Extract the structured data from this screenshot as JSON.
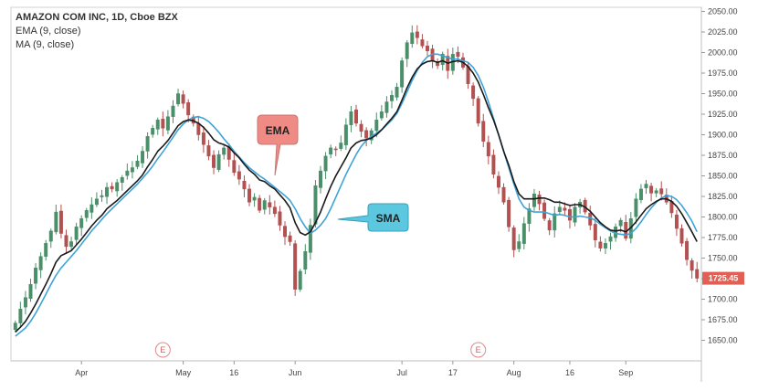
{
  "legend": {
    "symbol_line": "AMAZON COM INC, 1D, Cboe BZX",
    "ema_line": "EMA (9, close)",
    "ma_line": "MA (9, close)"
  },
  "callouts": {
    "ema_label": "EMA",
    "sma_label": "SMA",
    "ema_color": "#f08a84",
    "sma_color": "#5bc8e0"
  },
  "last_price_label": "1725.45",
  "earnings_marker": "E",
  "colors": {
    "up": "#4a8f6a",
    "down": "#b35050",
    "ema": "#1a1a1a",
    "ma": "#3ea3d8",
    "price_tag": "#e06055"
  },
  "chart_data": {
    "type": "candlestick",
    "title": "AMAZON COM INC, 1D, Cboe BZX",
    "xlabel": "",
    "ylabel": "",
    "ylim": [
      1625,
      2055
    ],
    "y_ticks": [
      1650,
      1675,
      1700,
      1725,
      1750,
      1775,
      1800,
      1825,
      1850,
      1875,
      1900,
      1925,
      1950,
      1975,
      2000,
      2025,
      2050
    ],
    "x_tick_labels": [
      {
        "label": "Apr",
        "bar": 13
      },
      {
        "label": "May",
        "bar": 33
      },
      {
        "label": "16",
        "bar": 43
      },
      {
        "label": "Jun",
        "bar": 55
      },
      {
        "label": "Jul",
        "bar": 76
      },
      {
        "label": "17",
        "bar": 86
      },
      {
        "label": "Aug",
        "bar": 98
      },
      {
        "label": "16",
        "bar": 109
      },
      {
        "label": "Sep",
        "bar": 120
      }
    ],
    "earnings_bars": [
      29,
      91
    ],
    "closes": [
      1671,
      1688,
      1702,
      1718,
      1738,
      1752,
      1768,
      1783,
      1806,
      1780,
      1764,
      1770,
      1788,
      1798,
      1808,
      1815,
      1822,
      1826,
      1836,
      1834,
      1842,
      1848,
      1856,
      1860,
      1868,
      1880,
      1898,
      1908,
      1918,
      1908,
      1922,
      1935,
      1950,
      1938,
      1924,
      1914,
      1900,
      1888,
      1874,
      1860,
      1876,
      1884,
      1870,
      1854,
      1846,
      1834,
      1818,
      1824,
      1808,
      1820,
      1812,
      1804,
      1790,
      1776,
      1770,
      1712,
      1734,
      1758,
      1790,
      1838,
      1856,
      1874,
      1884,
      1882,
      1890,
      1912,
      1928,
      1914,
      1904,
      1896,
      1905,
      1918,
      1928,
      1940,
      1948,
      1958,
      1990,
      2012,
      2024,
      2018,
      2008,
      2002,
      1990,
      1984,
      1998,
      1978,
      1998,
      1995,
      1982,
      1962,
      1944,
      1914,
      1892,
      1874,
      1852,
      1836,
      1818,
      1788,
      1760,
      1770,
      1792,
      1810,
      1828,
      1816,
      1798,
      1784,
      1804,
      1812,
      1808,
      1796,
      1812,
      1818,
      1806,
      1790,
      1772,
      1762,
      1768,
      1776,
      1788,
      1796,
      1774,
      1798,
      1822,
      1834,
      1840,
      1829,
      1832,
      1828,
      1818,
      1805,
      1786,
      1768,
      1748,
      1735,
      1725.45
    ],
    "ema_9": [
      1660,
      1666,
      1673,
      1683,
      1694,
      1706,
      1718,
      1731,
      1745,
      1753,
      1756,
      1759,
      1766,
      1773,
      1781,
      1789,
      1796,
      1802,
      1810,
      1815,
      1820,
      1826,
      1832,
      1838,
      1844,
      1851,
      1861,
      1870,
      1880,
      1886,
      1893,
      1902,
      1911,
      1916,
      1918,
      1917,
      1914,
      1909,
      1902,
      1894,
      1890,
      1888,
      1885,
      1878,
      1872,
      1864,
      1857,
      1852,
      1845,
      1843,
      1838,
      1834,
      1827,
      1820,
      1811,
      1793,
      1781,
      1778,
      1782,
      1793,
      1806,
      1822,
      1837,
      1850,
      1861,
      1872,
      1884,
      1890,
      1893,
      1894,
      1896,
      1900,
      1906,
      1913,
      1920,
      1928,
      1942,
      1957,
      1970,
      1980,
      1986,
      1989,
      1990,
      1988,
      1990,
      1987,
      1989,
      1990,
      1988,
      1983,
      1975,
      1964,
      1949,
      1933,
      1918,
      1900,
      1880,
      1863,
      1843,
      1828,
      1822,
      1822,
      1822,
      1823,
      1823,
      1821,
      1818,
      1818,
      1816,
      1814,
      1815,
      1815,
      1812,
      1807,
      1800,
      1793,
      1788,
      1784,
      1783,
      1784,
      1782,
      1787,
      1794,
      1802,
      1810,
      1815,
      1819,
      1822,
      1822,
      1819,
      1813,
      1804,
      1793,
      1782,
      1770
    ],
    "ma_9": [
      1655,
      1660,
      1665,
      1673,
      1683,
      1694,
      1706,
      1718,
      1729,
      1738,
      1745,
      1752,
      1759,
      1767,
      1775,
      1783,
      1790,
      1797,
      1804,
      1810,
      1816,
      1822,
      1828,
      1834,
      1840,
      1847,
      1854,
      1862,
      1871,
      1879,
      1888,
      1897,
      1906,
      1913,
      1918,
      1921,
      1922,
      1920,
      1916,
      1910,
      1903,
      1895,
      1888,
      1880,
      1873,
      1866,
      1860,
      1855,
      1850,
      1846,
      1841,
      1836,
      1831,
      1826,
      1820,
      1810,
      1798,
      1788,
      1780,
      1784,
      1790,
      1798,
      1810,
      1824,
      1838,
      1852,
      1864,
      1876,
      1886,
      1893,
      1898,
      1902,
      1906,
      1912,
      1918,
      1926,
      1938,
      1952,
      1966,
      1978,
      1988,
      1995,
      1998,
      1998,
      1996,
      1994,
      1992,
      1992,
      1990,
      1988,
      1982,
      1972,
      1958,
      1940,
      1920,
      1900,
      1880,
      1860,
      1840,
      1822,
      1812,
      1808,
      1806,
      1806,
      1806,
      1804,
      1802,
      1803,
      1802,
      1800,
      1800,
      1801,
      1800,
      1799,
      1796,
      1791,
      1787,
      1783,
      1780,
      1779,
      1778,
      1780,
      1786,
      1794,
      1803,
      1811,
      1818,
      1823,
      1826,
      1825,
      1821,
      1814,
      1805,
      1795,
      1782
    ]
  }
}
